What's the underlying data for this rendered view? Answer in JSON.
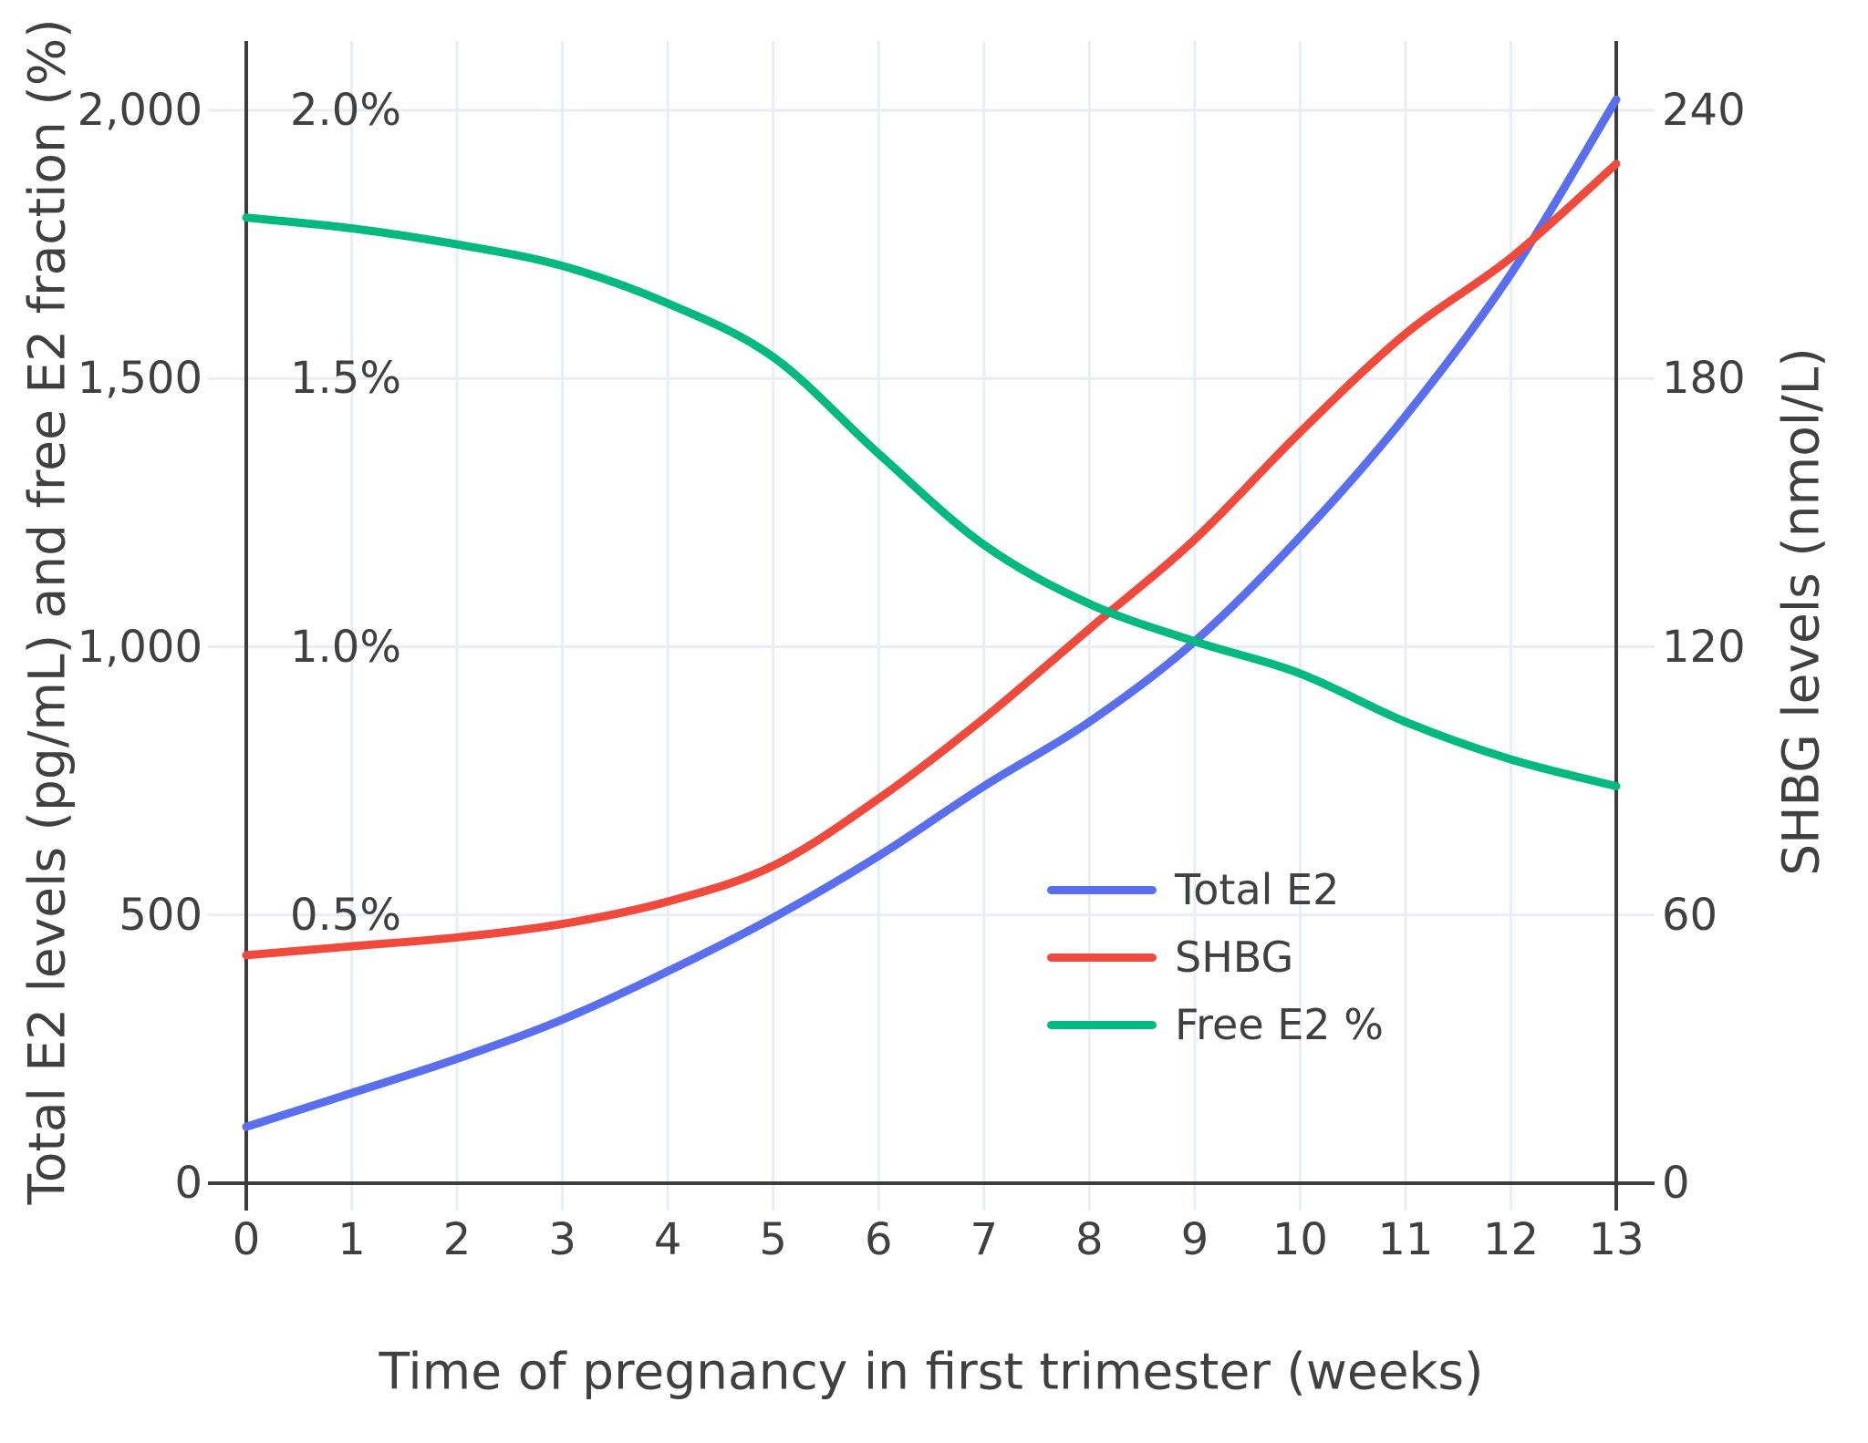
{
  "colors": {
    "background": "#ffffff",
    "grid": "#e8edf6",
    "axis_line": "#3d3d3d",
    "text": "#404040",
    "total_e2": "#5a6ff0",
    "shbg": "#ef4a3b",
    "free_e2": "#00b97f"
  },
  "chart_data": {
    "type": "line",
    "title": "",
    "xlabel": "Time of pregnancy in first trimester (weeks)",
    "ylabel_left": "Total E2 levels (pg/mL) and free E2 fraction (%)",
    "ylabel_right": "SHBG levels (nmol/L)",
    "x": [
      0,
      1,
      2,
      3,
      4,
      5,
      6,
      7,
      8,
      9,
      10,
      11,
      12,
      13
    ],
    "xlim": [
      0,
      13
    ],
    "left_axis_range_pg_ml": [
      0,
      2000
    ],
    "left_axis_percent_range": [
      0,
      2.0
    ],
    "right_axis_range_nmol_l": [
      0,
      240
    ],
    "grid": true,
    "legend_position": "middle-right",
    "x_ticks": [
      "0",
      "1",
      "2",
      "3",
      "4",
      "5",
      "6",
      "7",
      "8",
      "9",
      "10",
      "11",
      "12",
      "13"
    ],
    "left_ticks": [
      {
        "value": 0,
        "label": "0"
      },
      {
        "value": 500,
        "label": "500"
      },
      {
        "value": 1000,
        "label": "1,000"
      },
      {
        "value": 1500,
        "label": "1,500"
      },
      {
        "value": 2000,
        "label": "2,000"
      }
    ],
    "percent_labels": [
      {
        "value": 500,
        "label": "0.5%"
      },
      {
        "value": 1000,
        "label": "1.0%"
      },
      {
        "value": 1500,
        "label": "1.5%"
      },
      {
        "value": 2000,
        "label": "2.0%"
      }
    ],
    "right_ticks": [
      {
        "nmol": 0,
        "label": "0"
      },
      {
        "nmol": 60,
        "label": "60"
      },
      {
        "nmol": 120,
        "label": "120"
      },
      {
        "nmol": 180,
        "label": "180"
      },
      {
        "nmol": 240,
        "label": "240"
      }
    ],
    "series": [
      {
        "name": "Total E2",
        "axis": "left",
        "units": "pg/mL",
        "color": "#5a6ff0",
        "values": [
          105,
          168,
          232,
          305,
          395,
          495,
          610,
          740,
          860,
          1010,
          1205,
          1430,
          1695,
          2020
        ]
      },
      {
        "name": "SHBG",
        "axis": "right",
        "units": "nmol/L",
        "color": "#ef4a3b",
        "values": [
          51,
          53,
          55,
          58,
          63,
          71,
          86,
          104,
          124,
          144,
          168,
          190,
          207,
          228
        ]
      },
      {
        "name": "Free E2 %",
        "axis": "left_percent",
        "units": "%",
        "color": "#00b97f",
        "values": [
          1.8,
          1.78,
          1.75,
          1.71,
          1.64,
          1.54,
          1.36,
          1.19,
          1.08,
          1.01,
          0.95,
          0.86,
          0.79,
          0.74
        ]
      }
    ]
  }
}
